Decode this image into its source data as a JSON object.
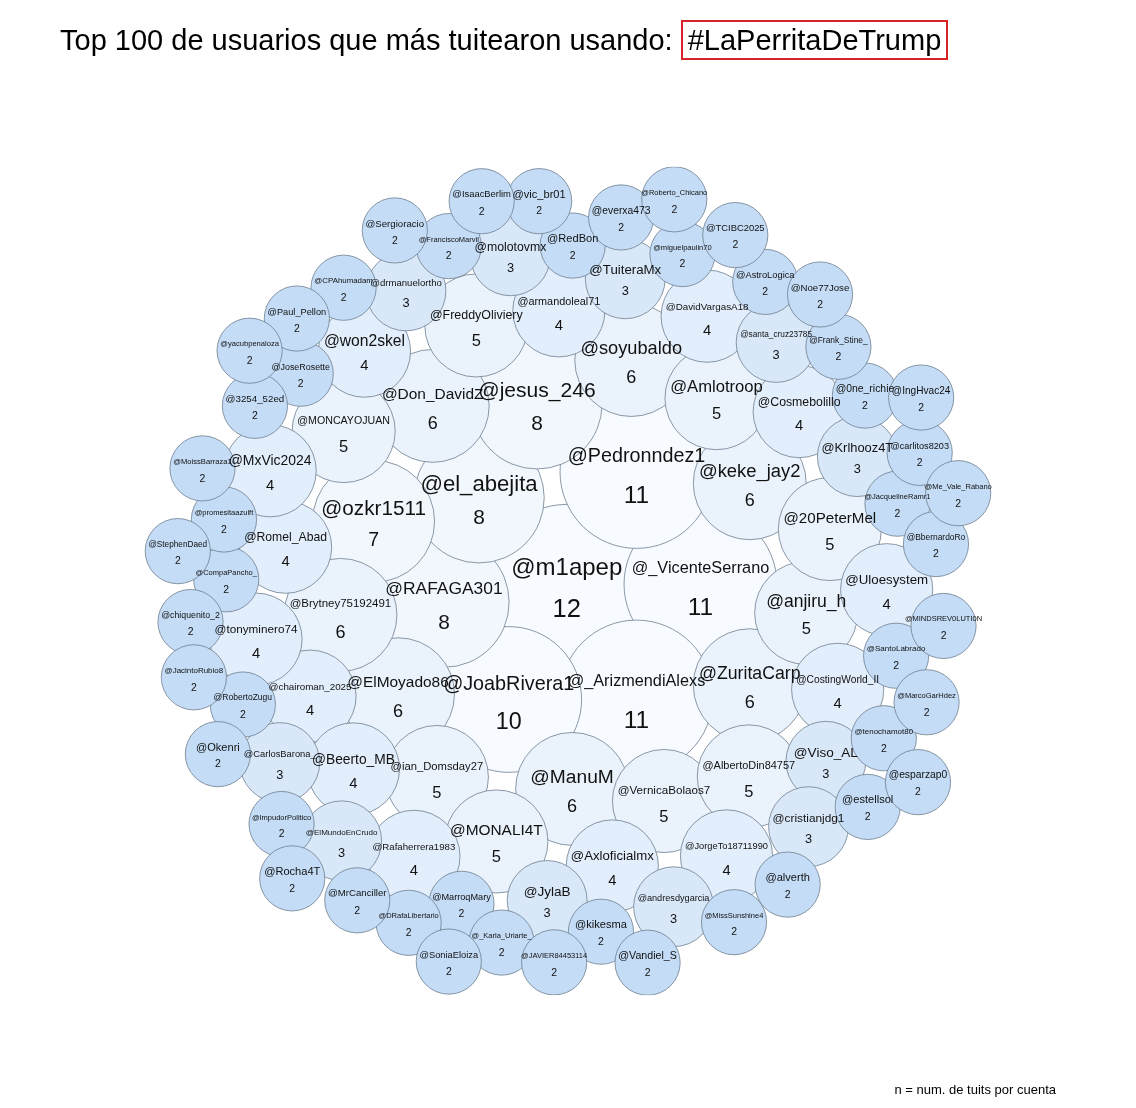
{
  "chart_data": {
    "type": "other",
    "title": "Top 100 de usuarios que más tuitearon usando: #LaPerritaDeTrump",
    "categories": [
      "@m1apep",
      "@_VicenteSerrano",
      "@_ArizmendiAlexs",
      "@Pedronndez1",
      "@JoabRivera1",
      "@RAFAGA301",
      "@el_abejita",
      "@jesus_246",
      "@ozkr1511",
      "@ElMoyado86",
      "@ManuM",
      "@ZuritaCarp",
      "@keke_jay2",
      "@Don_DavidZ",
      "@Brytney75192491",
      "@soyubaldo",
      "@ian_Domsday27",
      "@VernicaBolaos7",
      "@anjiru_h",
      "@Amlotroop",
      "@AlbertoDin84757",
      "@20PeterMel",
      "@MONALI4T",
      "@MONCAYOJUAN",
      "@FreddyOliviery",
      "@armandoleal71",
      "@chairoman_2025",
      "@Romel_Abad",
      "@Beerto_MB",
      "@Axloficialmx",
      "@CostingWorld_II",
      "@Cosmebolillo",
      "@DavidVargasA18",
      "@won2skel",
      "@tonyminero74",
      "@Rafaherrera1983",
      "@MxVic2024",
      "@JorgeTo18711990",
      "@Uloesystem",
      "@Viso_AL",
      "@TuiteraMx",
      "@Krlhooz4T",
      "@JylaB",
      "@santa_cruz23785",
      "@molotovmx",
      "@drmanuelortho",
      "@CarlosBarona_",
      "@ElMundoEnCrudo",
      "@andresdygarcia",
      "@cristianjdg1",
      "@SantoLabrado",
      "@CompaPancho_",
      "@JacquelineRamr1",
      "@JoseRosette",
      "@MarroqMary",
      "@RedBon",
      "@RobertoZugu",
      "@promesitaazulft",
      "@tenochamot80",
      "@0ne_richie",
      "@kikesma",
      "@miguelpaulin70",
      "@3254_52ed",
      "@FranciscoMarvil",
      "@Frank_Stine_",
      "@AstroLogica",
      "@_Karla_Uriarte_",
      "@BbernardoRo",
      "@CPAhumadam",
      "@ImpudorPolitico",
      "@estellsol",
      "@everxa473",
      "@alverth",
      "@carlitos8203",
      "@chiquenito_2",
      "@DRafaLibertario",
      "@MINDSREV0LUTI0N",
      "@MarcoGarHdez",
      "@Paul_Pellon",
      "@MissSunshine4",
      "@MoissBarraza1",
      "@MrCanciller",
      "@JAVIER84453114",
      "@JacintoRubio8",
      "@Noe77Jose",
      "@Okenri",
      "@vic_br01",
      "@StephenDaed",
      "@TCIBC2025",
      "@Vandiel_S",
      "@yacubpenaloza",
      "@IsaacBerlim",
      "@Sergioracio",
      "@SoniaEloiza",
      "@IngHvac24",
      "@Me_Vale_Rabano",
      "@esparzap0",
      "@Roberto_Chicano",
      "@Rocha4T"
    ],
    "values": [
      12,
      11,
      11,
      11,
      10,
      8,
      8,
      8,
      7,
      6,
      6,
      6,
      6,
      6,
      6,
      6,
      5,
      5,
      5,
      5,
      5,
      5,
      5,
      5,
      5,
      4,
      4,
      4,
      4,
      4,
      4,
      4,
      4,
      4,
      4,
      4,
      4,
      4,
      4,
      3,
      3,
      3,
      3,
      3,
      3,
      3,
      3,
      3,
      3,
      3,
      2,
      2,
      2,
      2,
      2,
      2,
      2,
      2,
      2,
      2,
      2,
      2,
      2,
      2,
      2,
      2,
      2,
      2,
      2,
      2,
      2,
      2,
      2,
      2,
      2,
      2,
      2,
      2,
      2,
      2,
      2,
      2,
      2,
      2,
      2,
      2,
      2,
      2,
      2,
      2,
      2,
      2,
      2,
      2,
      2,
      2,
      2,
      2,
      2
    ],
    "colors": [
      "#f7fbff",
      "#f7fbff",
      "#f7fbff",
      "#f7fbff",
      "#f7fbff",
      "#f2f7fe",
      "#f2f7fe",
      "#f2f7fe",
      "#f2f7fe",
      "#eaf2fc",
      "#eaf2fc",
      "#eaf2fc",
      "#eaf2fc",
      "#eaf2fc",
      "#eaf2fc",
      "#eaf2fc",
      "#eaf2fc",
      "#eaf2fc",
      "#eaf2fc",
      "#eaf2fc",
      "#eaf2fc",
      "#eaf2fc",
      "#eaf2fc",
      "#eaf2fc",
      "#eaf2fc",
      "#e2eefb",
      "#e2eefb",
      "#e2eefb",
      "#e2eefb",
      "#e2eefb",
      "#e2eefb",
      "#e2eefb",
      "#e2eefb",
      "#e2eefb",
      "#e2eefb",
      "#e2eefb",
      "#e2eefb",
      "#e2eefb",
      "#e2eefb",
      "#d8e8f9",
      "#d8e8f9",
      "#d8e8f9",
      "#d8e8f9",
      "#d8e8f9",
      "#d8e8f9",
      "#d8e8f9",
      "#d8e8f9",
      "#d8e8f9",
      "#d8e8f9",
      "#d8e8f9",
      "#c4dcf6",
      "#c4dcf6",
      "#c4dcf6",
      "#c4dcf6",
      "#c4dcf6",
      "#c4dcf6",
      "#c4dcf6",
      "#c4dcf6",
      "#c4dcf6",
      "#c4dcf6",
      "#c4dcf6",
      "#c4dcf6",
      "#c4dcf6",
      "#c4dcf6",
      "#c4dcf6",
      "#c4dcf6",
      "#c4dcf6",
      "#c4dcf6",
      "#c4dcf6",
      "#c4dcf6",
      "#c4dcf6",
      "#c4dcf6",
      "#c4dcf6",
      "#c4dcf6",
      "#c4dcf6",
      "#c4dcf6",
      "#c4dcf6",
      "#c4dcf6",
      "#c4dcf6",
      "#c4dcf6",
      "#c4dcf6",
      "#c4dcf6",
      "#c4dcf6",
      "#c4dcf6",
      "#c4dcf6",
      "#c4dcf6",
      "#c4dcf6",
      "#c4dcf6",
      "#c4dcf6",
      "#c4dcf6",
      "#c4dcf6",
      "#c4dcf6",
      "#c4dcf6",
      "#c4dcf6",
      "#c4dcf6",
      "#c4dcf6",
      "#c4dcf6",
      "#c4dcf6",
      "#c4dcf6"
    ],
    "data_labels": true,
    "annotations": [
      "n = num. de tuits por cuenta"
    ]
  }
}
